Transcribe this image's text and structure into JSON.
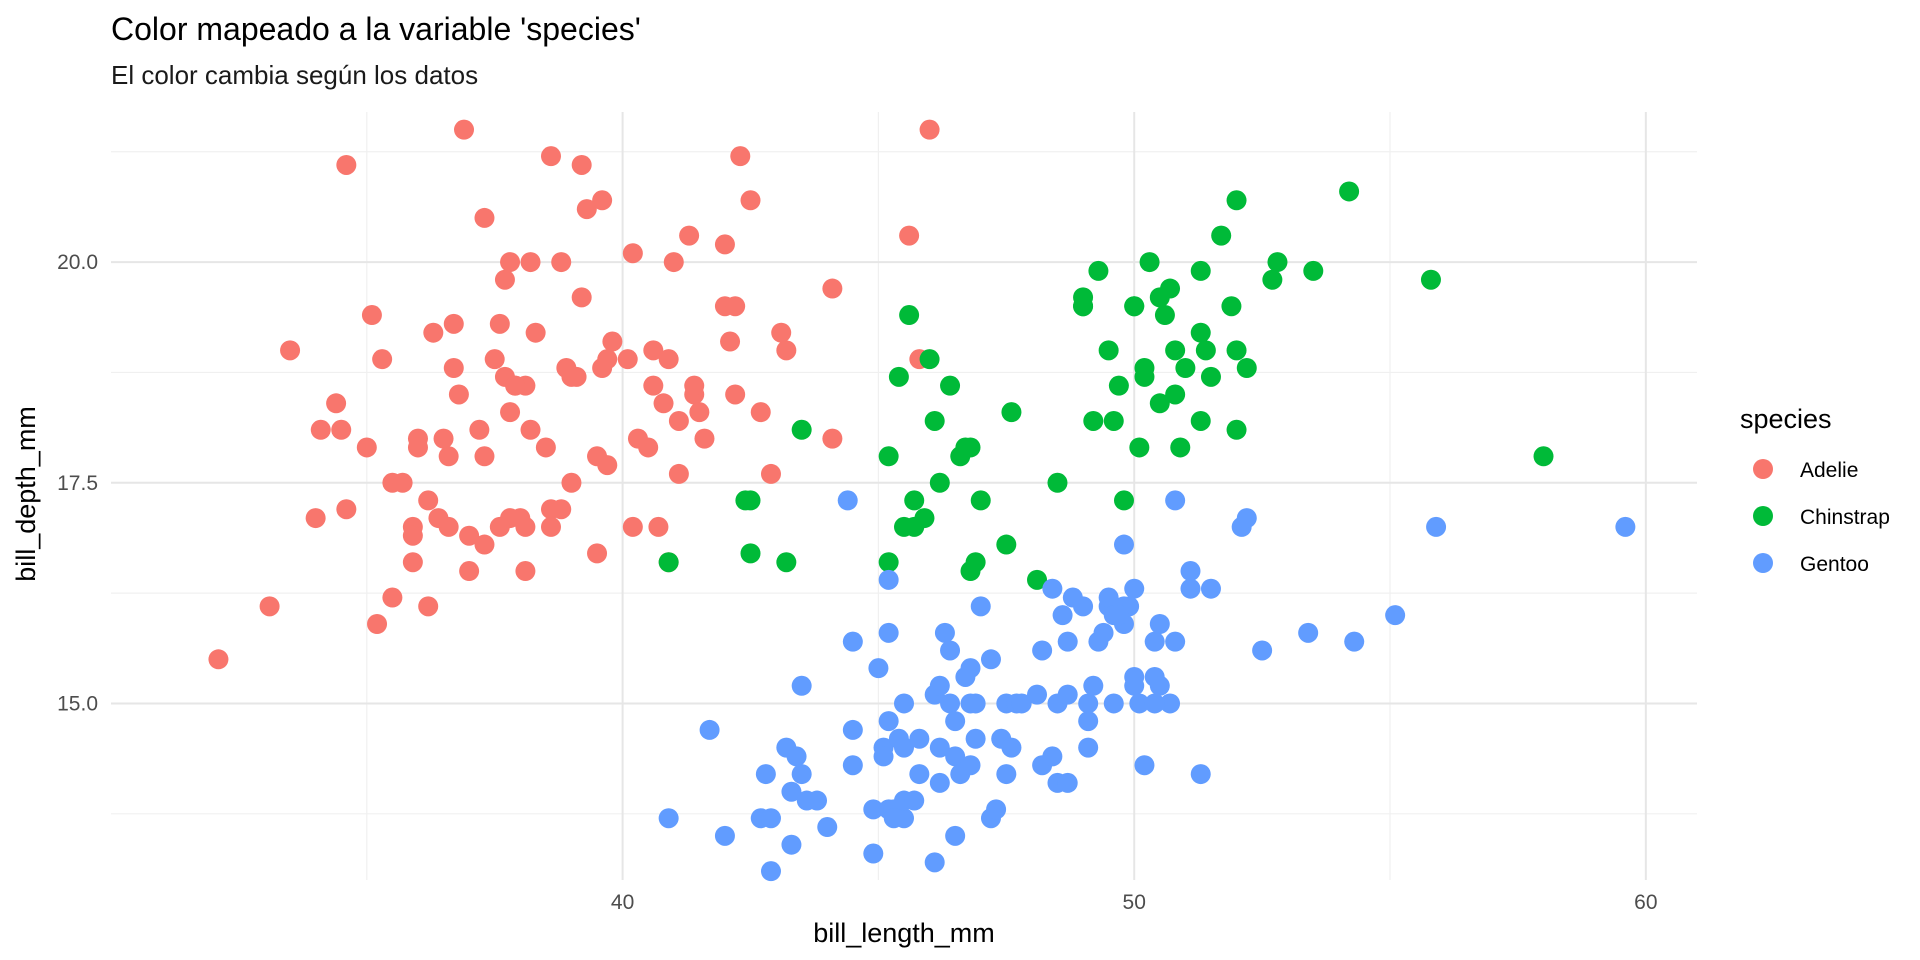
{
  "chart_data": {
    "type": "scatter",
    "title": "Color mapeado a la variable 'species'",
    "subtitle": "El color cambia según los datos",
    "xlabel": "bill_length_mm",
    "ylabel": "bill_depth_mm",
    "xlim": [
      30.0,
      61.0
    ],
    "ylim": [
      13.0,
      21.7
    ],
    "x_ticks": [
      40,
      50,
      60
    ],
    "x_tick_labels": [
      "40",
      "50",
      "60"
    ],
    "y_ticks": [
      15.0,
      17.5,
      20.0
    ],
    "y_tick_labels": [
      "15.0",
      "17.5",
      "20.0"
    ],
    "grid": true,
    "legend": {
      "title": "species",
      "position": "right"
    },
    "series": [
      {
        "name": "Adelie",
        "color": "#F8766D",
        "points": [
          [
            32.1,
            15.5
          ],
          [
            33.1,
            16.1
          ],
          [
            33.5,
            19.0
          ],
          [
            34.0,
            17.1
          ],
          [
            34.1,
            18.1
          ],
          [
            34.4,
            18.4
          ],
          [
            34.5,
            18.1
          ],
          [
            34.6,
            21.1
          ],
          [
            34.6,
            17.2
          ],
          [
            35.0,
            17.9
          ],
          [
            35.1,
            19.4
          ],
          [
            35.2,
            15.9
          ],
          [
            35.3,
            18.9
          ],
          [
            35.5,
            16.2
          ],
          [
            35.5,
            17.5
          ],
          [
            35.7,
            17.5
          ],
          [
            35.9,
            16.6
          ],
          [
            35.9,
            17.0
          ],
          [
            35.9,
            16.9
          ],
          [
            36.0,
            18.0
          ],
          [
            36.2,
            16.1
          ],
          [
            36.2,
            17.3
          ],
          [
            36.3,
            19.2
          ],
          [
            36.5,
            18.0
          ],
          [
            36.6,
            17.8
          ],
          [
            36.7,
            18.8
          ],
          [
            36.6,
            17.0
          ],
          [
            36.7,
            19.3
          ],
          [
            36.8,
            18.5
          ],
          [
            36.9,
            21.5
          ],
          [
            37.0,
            16.9
          ],
          [
            37.0,
            16.5
          ],
          [
            37.2,
            18.1
          ],
          [
            37.3,
            16.8
          ],
          [
            37.3,
            17.8
          ],
          [
            37.3,
            20.5
          ],
          [
            37.5,
            18.9
          ],
          [
            37.6,
            19.3
          ],
          [
            37.7,
            18.7
          ],
          [
            37.7,
            19.8
          ],
          [
            37.8,
            18.3
          ],
          [
            37.8,
            20.0
          ],
          [
            37.8,
            17.1
          ],
          [
            37.9,
            18.6
          ],
          [
            38.1,
            18.6
          ],
          [
            38.2,
            18.1
          ],
          [
            38.2,
            20.0
          ],
          [
            38.5,
            17.9
          ],
          [
            38.6,
            21.2
          ],
          [
            38.6,
            17.2
          ],
          [
            38.8,
            17.2
          ],
          [
            38.8,
            20.0
          ],
          [
            39.0,
            17.5
          ],
          [
            39.1,
            18.7
          ],
          [
            39.2,
            19.6
          ],
          [
            39.2,
            21.1
          ],
          [
            39.5,
            16.7
          ],
          [
            39.5,
            17.8
          ],
          [
            39.6,
            20.7
          ],
          [
            39.7,
            17.7
          ],
          [
            40.2,
            17.0
          ],
          [
            40.5,
            17.9
          ],
          [
            40.6,
            18.6
          ],
          [
            40.8,
            18.4
          ],
          [
            40.9,
            16.6
          ],
          [
            41.1,
            17.6
          ],
          [
            41.4,
            18.5
          ],
          [
            41.5,
            18.3
          ],
          [
            42.0,
            19.5
          ],
          [
            42.5,
            20.7
          ],
          [
            42.7,
            18.3
          ],
          [
            43.2,
            19.0
          ],
          [
            44.1,
            19.7
          ],
          [
            44.1,
            18.0
          ],
          [
            45.8,
            18.9
          ],
          [
            46.0,
            21.5
          ],
          [
            45.6,
            20.3
          ],
          [
            42.9,
            17.6
          ],
          [
            36.4,
            17.1
          ],
          [
            36.0,
            17.9
          ],
          [
            37.6,
            17.0
          ],
          [
            38.0,
            17.1
          ],
          [
            38.1,
            17.0
          ],
          [
            38.3,
            19.2
          ],
          [
            39.0,
            18.7
          ],
          [
            39.3,
            20.6
          ],
          [
            39.8,
            19.1
          ],
          [
            40.1,
            18.9
          ],
          [
            40.3,
            18.0
          ],
          [
            40.7,
            17.0
          ],
          [
            41.1,
            18.2
          ],
          [
            41.3,
            20.3
          ],
          [
            41.6,
            18.0
          ],
          [
            42.2,
            18.5
          ],
          [
            42.3,
            21.2
          ],
          [
            43.1,
            19.2
          ],
          [
            37.9,
            18.6
          ],
          [
            38.9,
            18.8
          ],
          [
            39.7,
            18.9
          ],
          [
            40.2,
            20.1
          ],
          [
            40.6,
            19.0
          ],
          [
            41.0,
            20.0
          ],
          [
            41.4,
            18.6
          ],
          [
            42.0,
            20.2
          ],
          [
            42.1,
            19.1
          ],
          [
            42.2,
            19.5
          ],
          [
            38.1,
            16.5
          ],
          [
            38.6,
            17.0
          ],
          [
            39.6,
            18.8
          ],
          [
            40.9,
            18.9
          ]
        ]
      },
      {
        "name": "Chinstrap",
        "color": "#00BA38",
        "points": [
          [
            40.9,
            16.6
          ],
          [
            42.4,
            17.3
          ],
          [
            42.5,
            16.7
          ],
          [
            42.5,
            17.3
          ],
          [
            43.2,
            16.6
          ],
          [
            43.5,
            18.1
          ],
          [
            45.2,
            17.8
          ],
          [
            45.2,
            16.6
          ],
          [
            45.4,
            18.7
          ],
          [
            45.5,
            17.0
          ],
          [
            45.6,
            19.4
          ],
          [
            45.7,
            17.3
          ],
          [
            45.9,
            17.1
          ],
          [
            45.7,
            17.0
          ],
          [
            46.0,
            18.9
          ],
          [
            46.1,
            18.2
          ],
          [
            46.2,
            17.5
          ],
          [
            46.4,
            18.6
          ],
          [
            46.6,
            17.8
          ],
          [
            46.7,
            17.9
          ],
          [
            46.8,
            17.9
          ],
          [
            46.9,
            16.6
          ],
          [
            47.0,
            17.3
          ],
          [
            46.8,
            16.5
          ],
          [
            47.5,
            16.8
          ],
          [
            47.6,
            18.3
          ],
          [
            48.1,
            16.4
          ],
          [
            48.5,
            17.5
          ],
          [
            49.0,
            19.5
          ],
          [
            49.0,
            19.6
          ],
          [
            49.2,
            18.2
          ],
          [
            49.3,
            19.9
          ],
          [
            49.5,
            19.0
          ],
          [
            49.6,
            18.2
          ],
          [
            49.7,
            18.6
          ],
          [
            49.8,
            17.3
          ],
          [
            50.0,
            19.5
          ],
          [
            50.1,
            17.9
          ],
          [
            50.2,
            18.8
          ],
          [
            50.3,
            20.0
          ],
          [
            50.5,
            18.4
          ],
          [
            50.5,
            19.6
          ],
          [
            50.6,
            19.4
          ],
          [
            50.7,
            19.7
          ],
          [
            50.8,
            18.5
          ],
          [
            50.8,
            19.0
          ],
          [
            50.9,
            17.9
          ],
          [
            51.0,
            18.8
          ],
          [
            51.3,
            18.2
          ],
          [
            51.3,
            19.2
          ],
          [
            51.3,
            19.9
          ],
          [
            51.4,
            19.0
          ],
          [
            51.5,
            18.7
          ],
          [
            51.7,
            20.3
          ],
          [
            52.0,
            18.1
          ],
          [
            52.0,
            19.0
          ],
          [
            52.0,
            20.7
          ],
          [
            52.2,
            18.8
          ],
          [
            52.7,
            19.8
          ],
          [
            52.8,
            20.0
          ],
          [
            53.5,
            19.9
          ],
          [
            54.2,
            20.8
          ],
          [
            55.8,
            19.8
          ],
          [
            58.0,
            17.8
          ],
          [
            50.2,
            18.7
          ],
          [
            49.0,
            19.5
          ],
          [
            51.9,
            19.5
          ],
          [
            50.0,
            19.5
          ]
        ]
      },
      {
        "name": "Gentoo",
        "color": "#619CFF",
        "points": [
          [
            40.9,
            13.7
          ],
          [
            41.7,
            14.7
          ],
          [
            42.0,
            13.5
          ],
          [
            42.7,
            13.7
          ],
          [
            42.9,
            13.1
          ],
          [
            42.8,
            14.2
          ],
          [
            42.9,
            13.7
          ],
          [
            43.2,
            14.5
          ],
          [
            43.3,
            14.0
          ],
          [
            43.3,
            13.4
          ],
          [
            43.4,
            14.4
          ],
          [
            43.5,
            14.2
          ],
          [
            43.5,
            15.2
          ],
          [
            43.6,
            13.9
          ],
          [
            43.8,
            13.9
          ],
          [
            44.0,
            13.6
          ],
          [
            44.4,
            17.3
          ],
          [
            44.5,
            14.3
          ],
          [
            44.5,
            15.7
          ],
          [
            44.5,
            14.7
          ],
          [
            44.9,
            13.8
          ],
          [
            44.9,
            13.3
          ],
          [
            45.0,
            15.4
          ],
          [
            45.1,
            14.5
          ],
          [
            45.1,
            14.4
          ],
          [
            45.2,
            13.8
          ],
          [
            45.2,
            14.8
          ],
          [
            45.2,
            15.8
          ],
          [
            45.2,
            16.4
          ],
          [
            45.3,
            13.8
          ],
          [
            45.3,
            13.7
          ],
          [
            45.4,
            14.6
          ],
          [
            45.5,
            14.5
          ],
          [
            45.5,
            13.7
          ],
          [
            45.5,
            13.9
          ],
          [
            45.7,
            13.9
          ],
          [
            45.8,
            14.6
          ],
          [
            45.8,
            14.2
          ],
          [
            46.1,
            13.2
          ],
          [
            46.1,
            15.1
          ],
          [
            46.2,
            14.1
          ],
          [
            46.2,
            14.5
          ],
          [
            46.3,
            15.8
          ],
          [
            46.4,
            15.0
          ],
          [
            46.4,
            15.6
          ],
          [
            46.5,
            13.5
          ],
          [
            46.5,
            14.4
          ],
          [
            46.5,
            14.8
          ],
          [
            46.6,
            14.2
          ],
          [
            46.7,
            15.3
          ],
          [
            46.8,
            14.3
          ],
          [
            46.8,
            15.4
          ],
          [
            46.9,
            14.6
          ],
          [
            46.9,
            15.0
          ],
          [
            47.2,
            13.7
          ],
          [
            47.2,
            15.5
          ],
          [
            47.3,
            13.8
          ],
          [
            47.4,
            14.6
          ],
          [
            47.5,
            14.2
          ],
          [
            47.5,
            15.0
          ],
          [
            47.7,
            15.0
          ],
          [
            47.8,
            15.0
          ],
          [
            48.1,
            15.1
          ],
          [
            48.2,
            14.3
          ],
          [
            48.2,
            15.6
          ],
          [
            48.4,
            14.4
          ],
          [
            48.4,
            16.3
          ],
          [
            48.5,
            14.1
          ],
          [
            48.5,
            15.0
          ],
          [
            48.6,
            16.0
          ],
          [
            48.7,
            14.1
          ],
          [
            48.7,
            15.1
          ],
          [
            48.7,
            15.7
          ],
          [
            48.8,
            16.2
          ],
          [
            49.0,
            16.1
          ],
          [
            49.1,
            14.5
          ],
          [
            49.1,
            14.8
          ],
          [
            49.1,
            15.0
          ],
          [
            49.2,
            15.2
          ],
          [
            49.3,
            15.7
          ],
          [
            49.4,
            15.8
          ],
          [
            49.5,
            16.1
          ],
          [
            49.5,
            16.2
          ],
          [
            49.6,
            15.0
          ],
          [
            49.6,
            16.0
          ],
          [
            49.8,
            15.9
          ],
          [
            49.8,
            16.8
          ],
          [
            49.9,
            16.1
          ],
          [
            50.0,
            15.2
          ],
          [
            50.0,
            15.3
          ],
          [
            50.0,
            16.3
          ],
          [
            50.1,
            15.0
          ],
          [
            50.2,
            14.3
          ],
          [
            50.4,
            15.3
          ],
          [
            50.4,
            15.7
          ],
          [
            50.5,
            15.2
          ],
          [
            50.5,
            15.9
          ],
          [
            50.7,
            15.0
          ],
          [
            50.8,
            15.7
          ],
          [
            50.8,
            17.3
          ],
          [
            51.1,
            16.3
          ],
          [
            51.1,
            16.5
          ],
          [
            51.3,
            14.2
          ],
          [
            51.5,
            16.3
          ],
          [
            52.1,
            17.0
          ],
          [
            52.2,
            17.1
          ],
          [
            52.5,
            15.6
          ],
          [
            53.4,
            15.8
          ],
          [
            54.3,
            15.7
          ],
          [
            55.1,
            16.0
          ],
          [
            55.9,
            17.0
          ],
          [
            59.6,
            17.0
          ],
          [
            46.2,
            15.2
          ],
          [
            47.0,
            16.1
          ],
          [
            45.5,
            15.0
          ],
          [
            46.8,
            15.0
          ],
          [
            47.6,
            14.5
          ],
          [
            50.4,
            15.0
          ],
          [
            49.8,
            16.1
          ],
          [
            49.7,
            16.0
          ]
        ]
      }
    ]
  }
}
